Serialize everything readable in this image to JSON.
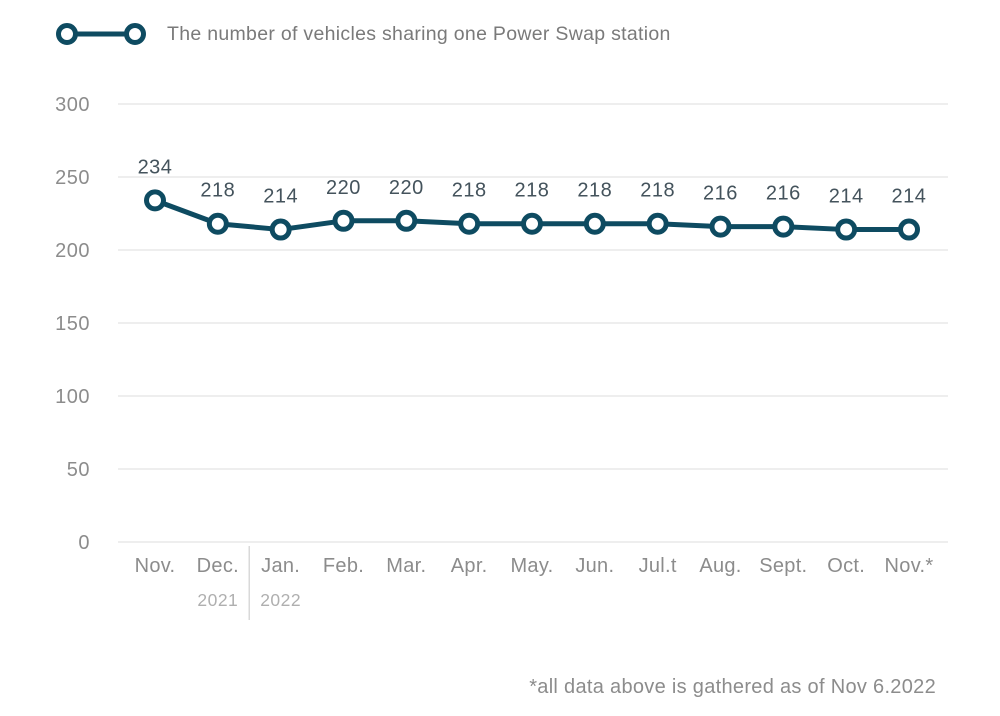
{
  "colors": {
    "accent": "#0E4B61",
    "data_label": "#44535C",
    "axis_label": "#8C8C8C",
    "year_label": "#AFAFAF",
    "gridline": "#E9E9E9",
    "separator": "#D9D9D9",
    "footnote": "#8C8C8C",
    "legend_text": "#7A7A7A",
    "background": "#FFFFFF"
  },
  "legend": {
    "label": "The number of vehicles sharing one Power Swap station"
  },
  "footnote": "*all data above is gathered as of Nov 6.2022",
  "chart_data": {
    "type": "line",
    "title": "The number of vehicles sharing one Power Swap station",
    "categories": [
      "Nov.",
      "Dec.",
      "Jan.",
      "Feb.",
      "Mar.",
      "Apr.",
      "May.",
      "Jun.",
      "Jul.t",
      "Aug.",
      "Sept.",
      "Oct.",
      "Nov.*"
    ],
    "values": [
      234,
      218,
      214,
      220,
      220,
      218,
      218,
      218,
      218,
      216,
      216,
      214,
      214
    ],
    "year_annotations": [
      {
        "label": "2021",
        "category_index": 1
      },
      {
        "label": "2022",
        "category_index": 2
      }
    ],
    "year_separator_after_index": 1,
    "ylim": [
      0,
      300
    ],
    "yticks": [
      0,
      50,
      100,
      150,
      200,
      250,
      300
    ],
    "xlabel": "",
    "ylabel": "",
    "grid": "horizontal",
    "legend_position": "top-left",
    "marker": "open-circle",
    "data_labels": true
  }
}
